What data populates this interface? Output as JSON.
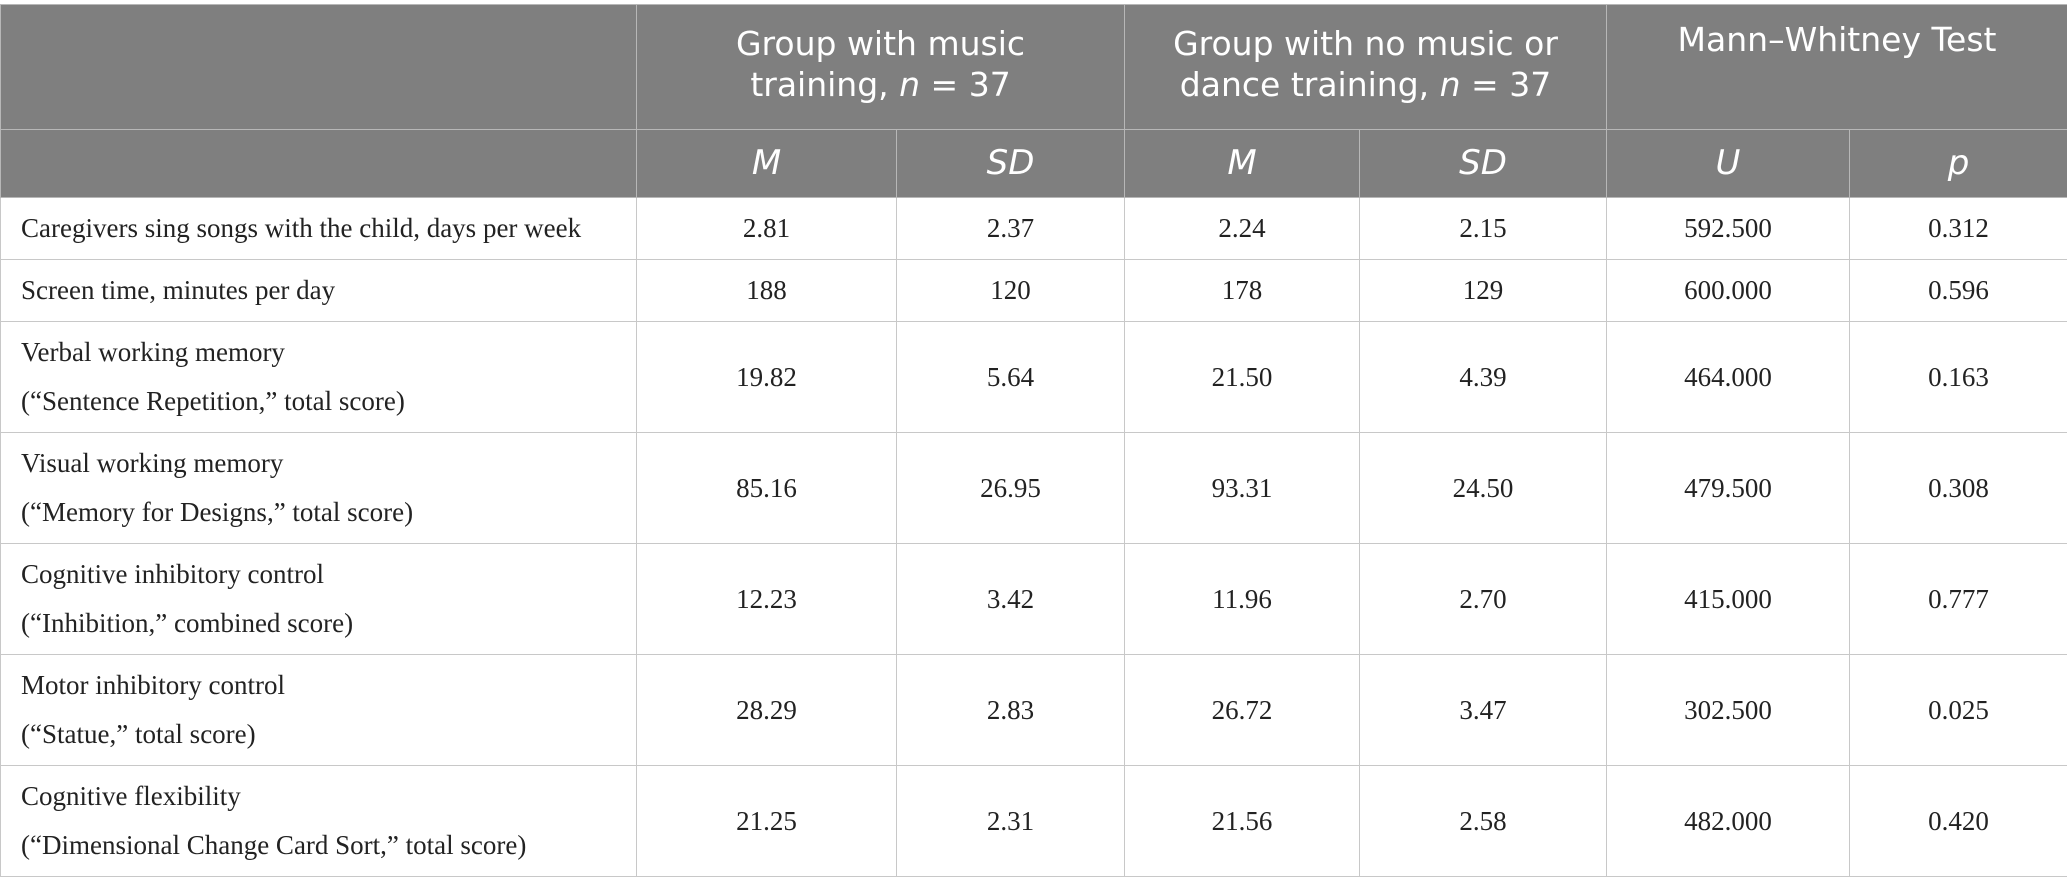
{
  "header": {
    "group1": {
      "line1": "Group with music",
      "line2_prefix": "training, ",
      "n_symbol": "n",
      "n_value": " = 37"
    },
    "group2": {
      "line1": "Group with no music or",
      "line2_prefix": "dance training, ",
      "n_symbol": "n",
      "n_value": " = 37"
    },
    "test": {
      "label": "Mann–Whitney Test"
    },
    "subheaders": [
      "M",
      "SD",
      "M",
      "SD",
      "U",
      "p"
    ]
  },
  "rows": [
    {
      "label_line1": "Caregivers sing songs with the child, days per week",
      "label_line2": "",
      "values": [
        "2.81",
        "2.37",
        "2.24",
        "2.15",
        "592.500",
        "0.312"
      ]
    },
    {
      "label_line1": "Screen time, minutes per day",
      "label_line2": "",
      "values": [
        "188",
        "120",
        "178",
        "129",
        "600.000",
        "0.596"
      ]
    },
    {
      "label_line1": "Verbal working memory",
      "label_line2": "(“Sentence Repetition,” total score)",
      "values": [
        "19.82",
        "5.64",
        "21.50",
        "4.39",
        "464.000",
        "0.163"
      ]
    },
    {
      "label_line1": "Visual working memory",
      "label_line2": "(“Memory for Designs,” total score)",
      "values": [
        "85.16",
        "26.95",
        "93.31",
        "24.50",
        "479.500",
        "0.308"
      ]
    },
    {
      "label_line1": "Cognitive inhibitory control",
      "label_line2": "(“Inhibition,” combined score)",
      "values": [
        "12.23",
        "3.42",
        "11.96",
        "2.70",
        "415.000",
        "0.777"
      ]
    },
    {
      "label_line1": "Motor inhibitory control",
      "label_line2": "(“Statue,” total score)",
      "values": [
        "28.29",
        "2.83",
        "26.72",
        "3.47",
        "302.500",
        "0.025"
      ]
    },
    {
      "label_line1": "Cognitive flexibility",
      "label_line2": "(“Dimensional Change Card Sort,” total score)",
      "values": [
        "21.25",
        "2.31",
        "21.56",
        "2.58",
        "482.000",
        "0.420"
      ]
    }
  ]
}
